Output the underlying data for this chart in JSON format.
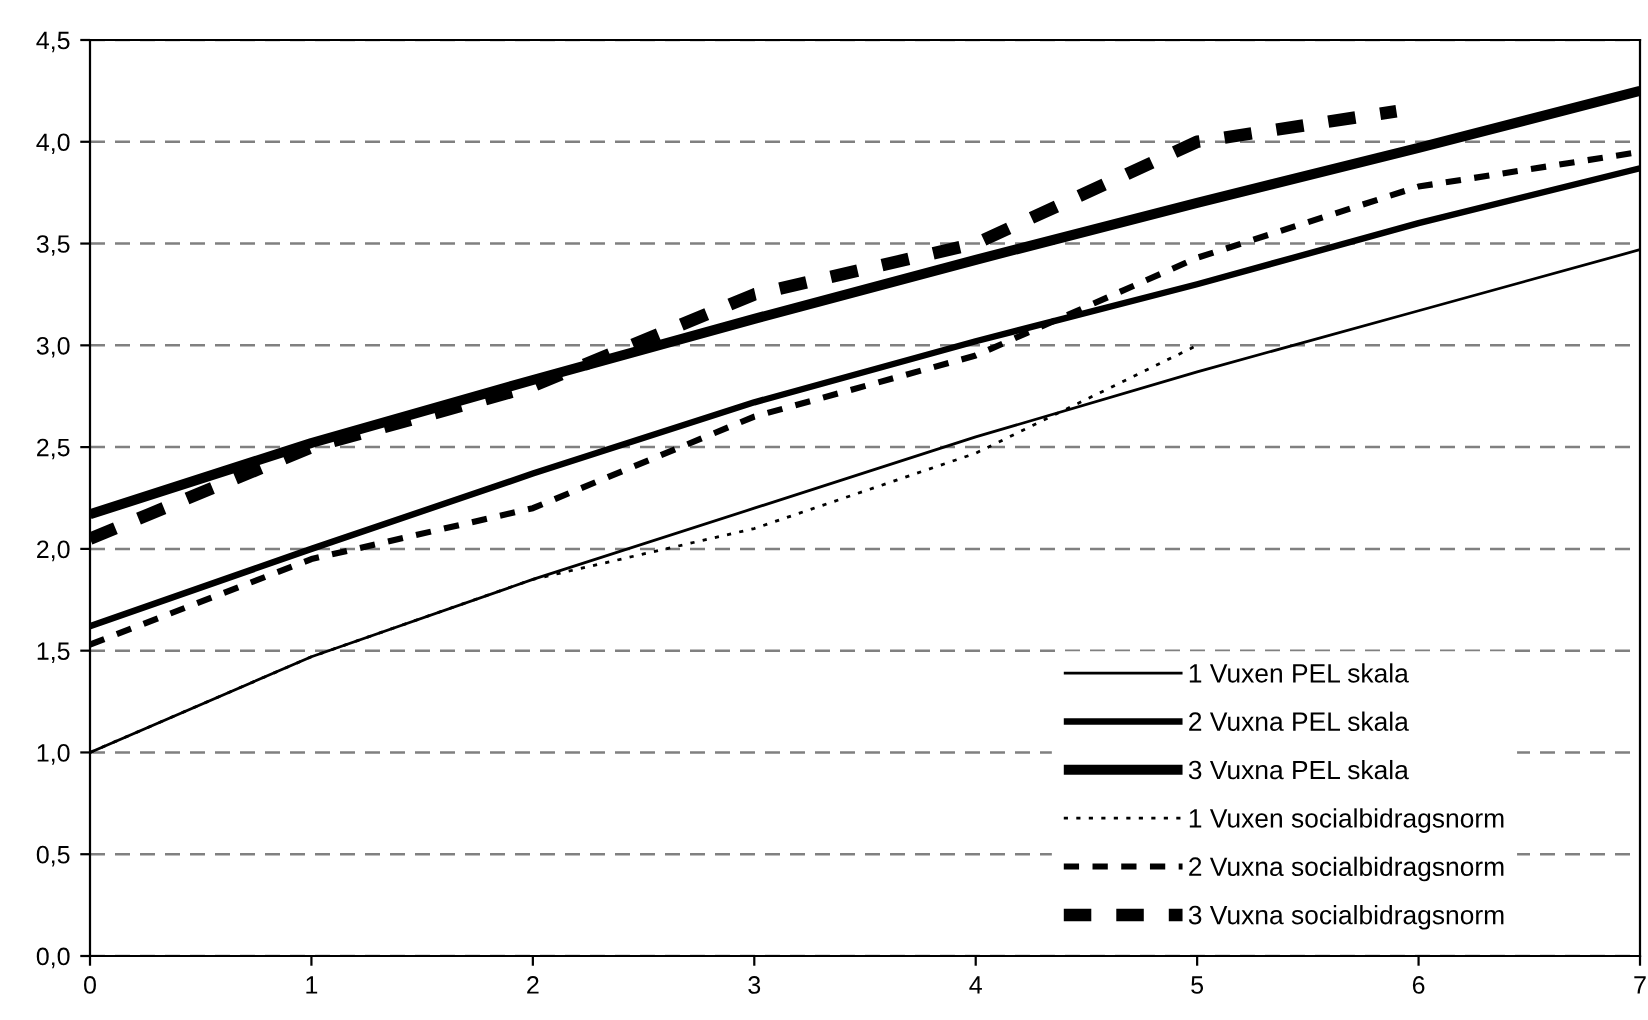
{
  "chart_data": {
    "type": "line",
    "x": [
      0,
      1,
      2,
      3,
      4,
      5,
      6,
      7
    ],
    "xlim": [
      0,
      7
    ],
    "xticks": [
      0,
      1,
      2,
      3,
      4,
      5,
      6,
      7
    ],
    "ylim": [
      0,
      4.5
    ],
    "yticks": [
      {
        "value": 0,
        "label": "0,0"
      },
      {
        "value": 0.5,
        "label": "0,5"
      },
      {
        "value": 1,
        "label": "1,0"
      },
      {
        "value": 1.5,
        "label": "1,5"
      },
      {
        "value": 2,
        "label": "2,0"
      },
      {
        "value": 2.5,
        "label": "2,5"
      },
      {
        "value": 3,
        "label": "3,0"
      },
      {
        "value": 3.5,
        "label": "3,5"
      },
      {
        "value": 4,
        "label": "4,0"
      },
      {
        "value": 4.5,
        "label": "4,5"
      }
    ],
    "grid": "y",
    "legend": "bottom right",
    "marker": "none",
    "series": [
      {
        "name": "1 Vuxen PEL skala",
        "color": "#000000",
        "line_style": "solid",
        "values": [
          1.0,
          1.47,
          1.85,
          2.2,
          2.55,
          2.87,
          3.17,
          3.47
        ]
      },
      {
        "name": "2 Vuxna PEL skala",
        "color": "#000000",
        "line_style": "solid",
        "values": [
          1.62,
          2.0,
          2.37,
          2.72,
          3.02,
          3.3,
          3.6,
          3.87
        ]
      },
      {
        "name": "3 Vuxna PEL skala",
        "color": "#000000",
        "line_style": "solid",
        "values": [
          2.17,
          2.52,
          2.83,
          3.13,
          3.42,
          3.7,
          3.97,
          4.25
        ]
      },
      {
        "name": "1 Vuxen socialbidragsnorm",
        "color": "#000000",
        "line_style": "dotted",
        "x": [
          0,
          1,
          2,
          3,
          4,
          5
        ],
        "values": [
          1.0,
          1.47,
          1.85,
          2.1,
          2.47,
          3.0
        ]
      },
      {
        "name": "2 Vuxna socialbidragsnorm",
        "color": "#000000",
        "line_style": "dashed",
        "values": [
          1.53,
          1.95,
          2.2,
          2.65,
          2.95,
          3.43,
          3.78,
          3.95
        ]
      },
      {
        "name": "3 Vuxna socialbidragsnorm",
        "color": "#000000",
        "line_style": "dashed",
        "x": [
          0,
          1,
          2,
          3,
          4,
          5,
          5.9
        ],
        "values": [
          2.05,
          2.5,
          2.8,
          3.25,
          3.5,
          4.0,
          4.15
        ]
      }
    ]
  }
}
